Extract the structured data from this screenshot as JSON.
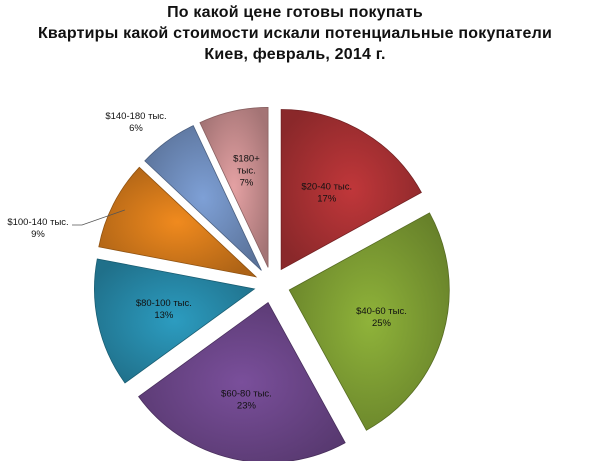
{
  "chart_data": {
    "type": "pie",
    "title": "По какой цене готовы покупать",
    "subtitle": "Квартиры какой стоимости искали потенциальные покупатели",
    "subtitle2": "Киев, февраль, 2014 г.",
    "slices": [
      {
        "label": "$20-40 тыс.",
        "value": 17,
        "value_text": "17%",
        "color": "#c0373a"
      },
      {
        "label": "$40-60 тыс.",
        "value": 25,
        "value_text": "25%",
        "color": "#8fb33a"
      },
      {
        "label": "$60-80 тыс.",
        "value": 23,
        "value_text": "23%",
        "color": "#7a4f9b"
      },
      {
        "label": "$80-100 тыс.",
        "value": 13,
        "value_text": "13%",
        "color": "#2c9cc0"
      },
      {
        "label": "$100-140 тыс.",
        "value": 9,
        "value_text": "9%",
        "color": "#f08a1e"
      },
      {
        "label": "$140-180 тыс.",
        "value": 6,
        "value_text": "6%",
        "color": "#7ea0d6"
      },
      {
        "label": "$180+ тыс.",
        "value": 7,
        "value_text": "7%",
        "color": "#e4a1a3"
      }
    ],
    "legend": "none",
    "exploded": true
  }
}
